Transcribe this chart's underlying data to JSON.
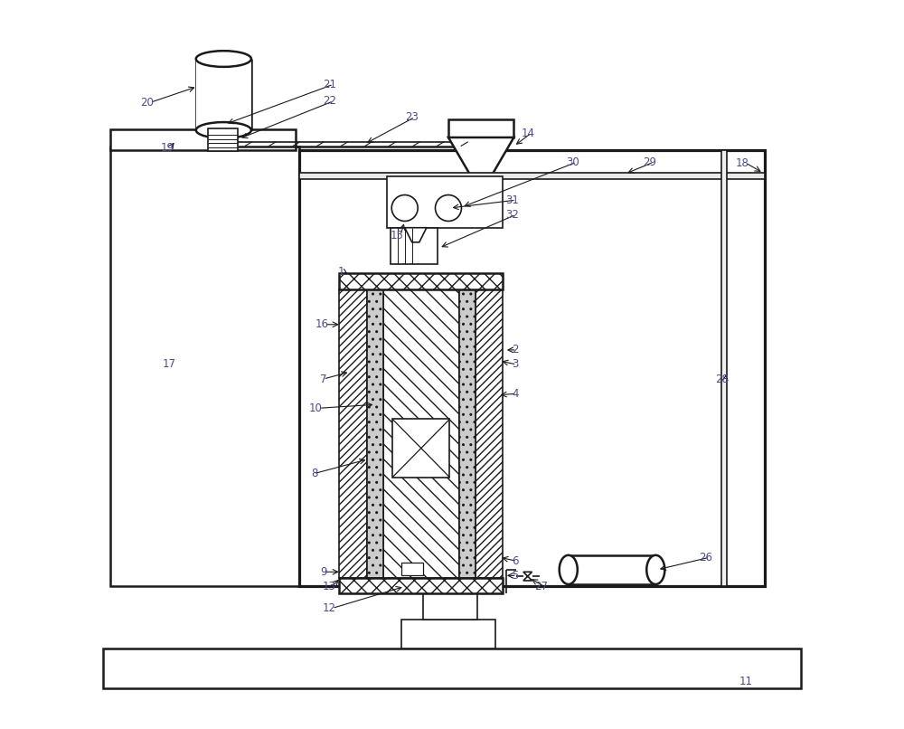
{
  "bg_color": "#ffffff",
  "line_color": "#1a1a1a",
  "label_color": "#4a4a8a",
  "fig_width": 10.0,
  "fig_height": 8.06
}
